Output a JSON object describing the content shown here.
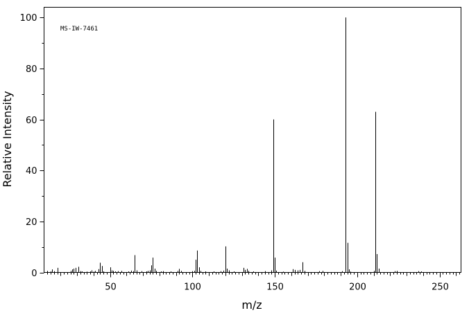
{
  "chart_data": {
    "type": "bar",
    "annotation": "MS-IW-7461",
    "xlabel": "m/z",
    "ylabel": "Relative Intensity",
    "xlim": [
      10,
      263
    ],
    "ylim": [
      0,
      104
    ],
    "x_ticks": [
      50,
      100,
      150,
      200,
      250
    ],
    "y_ticks": [
      0,
      20,
      40,
      60,
      80,
      100
    ],
    "peaks": [
      {
        "mz": 12,
        "intensity": 0.6
      },
      {
        "mz": 14,
        "intensity": 0.4
      },
      {
        "mz": 15,
        "intensity": 1.2
      },
      {
        "mz": 16,
        "intensity": 0.5
      },
      {
        "mz": 18,
        "intensity": 1.8
      },
      {
        "mz": 26,
        "intensity": 0.6
      },
      {
        "mz": 27,
        "intensity": 1.2
      },
      {
        "mz": 28,
        "intensity": 1.5
      },
      {
        "mz": 29,
        "intensity": 1.8
      },
      {
        "mz": 31,
        "intensity": 2.2
      },
      {
        "mz": 32,
        "intensity": 0.5
      },
      {
        "mz": 33,
        "intensity": 0.4
      },
      {
        "mz": 36,
        "intensity": 0.3
      },
      {
        "mz": 38,
        "intensity": 0.4
      },
      {
        "mz": 39,
        "intensity": 0.8
      },
      {
        "mz": 40,
        "intensity": 0.3
      },
      {
        "mz": 41,
        "intensity": 0.6
      },
      {
        "mz": 43,
        "intensity": 1.3
      },
      {
        "mz": 44,
        "intensity": 3.8
      },
      {
        "mz": 45,
        "intensity": 2.5
      },
      {
        "mz": 46,
        "intensity": 0.4
      },
      {
        "mz": 50,
        "intensity": 2.0
      },
      {
        "mz": 51,
        "intensity": 0.8
      },
      {
        "mz": 52,
        "intensity": 0.6
      },
      {
        "mz": 53,
        "intensity": 0.4
      },
      {
        "mz": 55,
        "intensity": 0.5
      },
      {
        "mz": 57,
        "intensity": 0.6
      },
      {
        "mz": 61,
        "intensity": 0.4
      },
      {
        "mz": 63,
        "intensity": 0.7
      },
      {
        "mz": 64,
        "intensity": 0.5
      },
      {
        "mz": 65,
        "intensity": 6.8
      },
      {
        "mz": 66,
        "intensity": 0.8
      },
      {
        "mz": 69,
        "intensity": 0.5
      },
      {
        "mz": 72,
        "intensity": 0.4
      },
      {
        "mz": 73,
        "intensity": 0.6
      },
      {
        "mz": 74,
        "intensity": 0.8
      },
      {
        "mz": 75,
        "intensity": 2.8
      },
      {
        "mz": 76,
        "intensity": 5.8
      },
      {
        "mz": 77,
        "intensity": 1.5
      },
      {
        "mz": 78,
        "intensity": 0.6
      },
      {
        "mz": 81,
        "intensity": 0.4
      },
      {
        "mz": 82,
        "intensity": 0.5
      },
      {
        "mz": 87,
        "intensity": 0.4
      },
      {
        "mz": 91,
        "intensity": 0.6
      },
      {
        "mz": 92,
        "intensity": 1.4
      },
      {
        "mz": 93,
        "intensity": 0.6
      },
      {
        "mz": 100,
        "intensity": 0.5
      },
      {
        "mz": 101,
        "intensity": 0.6
      },
      {
        "mz": 102,
        "intensity": 5.0
      },
      {
        "mz": 103,
        "intensity": 8.6
      },
      {
        "mz": 104,
        "intensity": 2.0
      },
      {
        "mz": 105,
        "intensity": 0.6
      },
      {
        "mz": 108,
        "intensity": 0.4
      },
      {
        "mz": 113,
        "intensity": 0.4
      },
      {
        "mz": 117,
        "intensity": 0.5
      },
      {
        "mz": 119,
        "intensity": 0.7
      },
      {
        "mz": 120,
        "intensity": 10.2
      },
      {
        "mz": 121,
        "intensity": 1.5
      },
      {
        "mz": 122,
        "intensity": 0.8
      },
      {
        "mz": 125,
        "intensity": 0.4
      },
      {
        "mz": 131,
        "intensity": 1.8
      },
      {
        "mz": 132,
        "intensity": 1.0
      },
      {
        "mz": 133,
        "intensity": 1.4
      },
      {
        "mz": 134,
        "intensity": 0.6
      },
      {
        "mz": 137,
        "intensity": 0.4
      },
      {
        "mz": 144,
        "intensity": 0.5
      },
      {
        "mz": 148,
        "intensity": 0.8
      },
      {
        "mz": 149,
        "intensity": 60.0
      },
      {
        "mz": 150,
        "intensity": 5.8
      },
      {
        "mz": 151,
        "intensity": 0.7
      },
      {
        "mz": 155,
        "intensity": 0.3
      },
      {
        "mz": 161,
        "intensity": 1.3
      },
      {
        "mz": 162,
        "intensity": 1.0
      },
      {
        "mz": 164,
        "intensity": 0.8
      },
      {
        "mz": 165,
        "intensity": 1.0
      },
      {
        "mz": 167,
        "intensity": 4.0
      },
      {
        "mz": 168,
        "intensity": 0.6
      },
      {
        "mz": 177,
        "intensity": 0.5
      },
      {
        "mz": 179,
        "intensity": 0.6
      },
      {
        "mz": 191,
        "intensity": 0.5
      },
      {
        "mz": 193,
        "intensity": 100.0
      },
      {
        "mz": 194,
        "intensity": 11.6
      },
      {
        "mz": 195,
        "intensity": 1.2
      },
      {
        "mz": 196,
        "intensity": 0.3
      },
      {
        "mz": 210,
        "intensity": 0.6
      },
      {
        "mz": 211,
        "intensity": 63.0
      },
      {
        "mz": 212,
        "intensity": 7.2
      },
      {
        "mz": 213,
        "intensity": 1.5
      },
      {
        "mz": 223,
        "intensity": 0.5
      },
      {
        "mz": 224,
        "intensity": 0.6
      },
      {
        "mz": 237,
        "intensity": 0.5
      },
      {
        "mz": 239,
        "intensity": 0.4
      }
    ]
  }
}
